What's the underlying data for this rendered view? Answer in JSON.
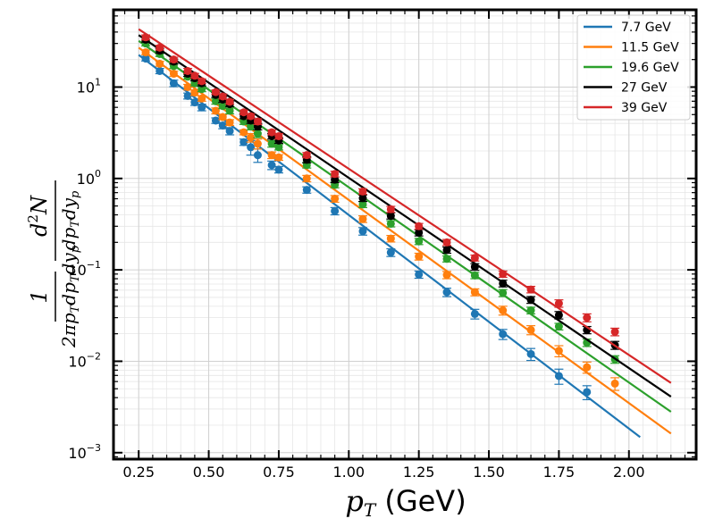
{
  "chart_data": {
    "type": "scatter",
    "title": "",
    "xlabel": "p_T (GeV)",
    "xlabel_parts": {
      "p": "p",
      "sub": "T",
      "rest": " (GeV)"
    },
    "ylabel": "1 / (2π p_T dp_T dy_p) d²N",
    "ylabel_parts": {
      "num_one": "1",
      "den": "2πp",
      "den_sub1": "T",
      "den_mid": "dp",
      "den_sub2": "T",
      "den_end": "dy",
      "den_sub3": "p",
      "num_d": "d",
      "num_sup": "2",
      "num_n": "N"
    },
    "xlim": [
      0.16,
      2.24
    ],
    "ylim": [
      0.00085,
      70
    ],
    "yscale": "log",
    "xticks": [
      "0.25",
      "0.50",
      "0.75",
      "1.00",
      "1.25",
      "1.50",
      "1.75",
      "2.00"
    ],
    "xtick_values": [
      0.25,
      0.5,
      0.75,
      1.0,
      1.25,
      1.5,
      1.75,
      2.0
    ],
    "yticks": [
      {
        "base": "10",
        "exp": "1",
        "value": 10
      },
      {
        "base": "10",
        "exp": "0",
        "value": 1
      },
      {
        "base": "10",
        "exp": "−1",
        "value": 0.1
      },
      {
        "base": "10",
        "exp": "−2",
        "value": 0.01
      },
      {
        "base": "10",
        "exp": "−3",
        "value": 0.001
      }
    ],
    "grid": true,
    "legend_position": "top-right",
    "series": [
      {
        "name": "7.7 GeV",
        "color": "#1f77b4",
        "fit": {
          "x": [
            0.25,
            2.04
          ],
          "y": [
            22.5,
            0.00148
          ]
        },
        "points": [
          [
            0.275,
            20.5,
            1.2
          ],
          [
            0.325,
            15.0,
            1.0
          ],
          [
            0.375,
            11.0,
            0.9
          ],
          [
            0.425,
            8.0,
            0.6
          ],
          [
            0.45,
            6.8,
            0.5
          ],
          [
            0.475,
            6.0,
            0.5
          ],
          [
            0.525,
            4.3,
            0.3
          ],
          [
            0.55,
            3.8,
            0.3
          ],
          [
            0.575,
            3.3,
            0.3
          ],
          [
            0.625,
            2.5,
            0.2
          ],
          [
            0.65,
            2.2,
            0.4
          ],
          [
            0.675,
            1.8,
            0.3
          ],
          [
            0.725,
            1.4,
            0.15
          ],
          [
            0.75,
            1.25,
            0.1
          ],
          [
            0.85,
            0.75,
            0.06
          ],
          [
            0.95,
            0.44,
            0.04
          ],
          [
            1.05,
            0.265,
            0.025
          ],
          [
            1.15,
            0.155,
            0.015
          ],
          [
            1.25,
            0.089,
            0.008
          ],
          [
            1.35,
            0.057,
            0.006
          ],
          [
            1.45,
            0.033,
            0.004
          ],
          [
            1.55,
            0.0198,
            0.0025
          ],
          [
            1.65,
            0.012,
            0.0018
          ],
          [
            1.75,
            0.0069,
            0.0013
          ],
          [
            1.85,
            0.0046,
            0.0008
          ]
        ]
      },
      {
        "name": "11.5 GeV",
        "color": "#ff7f0e",
        "fit": {
          "x": [
            0.25,
            2.15
          ],
          "y": [
            27.0,
            0.00162
          ]
        },
        "points": [
          [
            0.275,
            24.0,
            1.4
          ],
          [
            0.325,
            18.0,
            1.1
          ],
          [
            0.375,
            14.0,
            0.9
          ],
          [
            0.425,
            10.0,
            0.7
          ],
          [
            0.45,
            8.7,
            0.6
          ],
          [
            0.475,
            7.5,
            0.5
          ],
          [
            0.525,
            5.5,
            0.4
          ],
          [
            0.55,
            4.7,
            0.3
          ],
          [
            0.575,
            4.1,
            0.3
          ],
          [
            0.625,
            3.2,
            0.2
          ],
          [
            0.65,
            2.8,
            0.3
          ],
          [
            0.675,
            2.4,
            0.3
          ],
          [
            0.725,
            1.8,
            0.15
          ],
          [
            0.75,
            1.7,
            0.12
          ],
          [
            0.85,
            1.0,
            0.08
          ],
          [
            0.95,
            0.6,
            0.05
          ],
          [
            1.05,
            0.36,
            0.03
          ],
          [
            1.15,
            0.22,
            0.018
          ],
          [
            1.25,
            0.14,
            0.012
          ],
          [
            1.35,
            0.088,
            0.008
          ],
          [
            1.45,
            0.057,
            0.005
          ],
          [
            1.55,
            0.036,
            0.004
          ],
          [
            1.65,
            0.022,
            0.0025
          ],
          [
            1.75,
            0.013,
            0.0018
          ],
          [
            1.85,
            0.0086,
            0.0012
          ],
          [
            1.95,
            0.0057,
            0.0009
          ]
        ]
      },
      {
        "name": "19.6 GeV",
        "color": "#2ca02c",
        "fit": {
          "x": [
            0.25,
            2.15
          ],
          "y": [
            32.0,
            0.0028
          ]
        },
        "points": [
          [
            0.275,
            30.0,
            1.8
          ],
          [
            0.325,
            23.0,
            1.4
          ],
          [
            0.375,
            17.0,
            1.0
          ],
          [
            0.425,
            13.0,
            0.8
          ],
          [
            0.45,
            11.0,
            0.7
          ],
          [
            0.475,
            9.5,
            0.6
          ],
          [
            0.525,
            7.0,
            0.5
          ],
          [
            0.55,
            6.2,
            0.4
          ],
          [
            0.575,
            5.5,
            0.4
          ],
          [
            0.625,
            4.2,
            0.3
          ],
          [
            0.65,
            3.7,
            0.3
          ],
          [
            0.675,
            3.1,
            0.3
          ],
          [
            0.725,
            2.4,
            0.2
          ],
          [
            0.75,
            2.2,
            0.15
          ],
          [
            0.85,
            1.4,
            0.1
          ],
          [
            0.95,
            0.85,
            0.06
          ],
          [
            1.05,
            0.52,
            0.04
          ],
          [
            1.15,
            0.32,
            0.025
          ],
          [
            1.25,
            0.205,
            0.016
          ],
          [
            1.35,
            0.132,
            0.01
          ],
          [
            1.45,
            0.087,
            0.007
          ],
          [
            1.55,
            0.056,
            0.005
          ],
          [
            1.65,
            0.036,
            0.003
          ],
          [
            1.75,
            0.024,
            0.002
          ],
          [
            1.85,
            0.016,
            0.0015
          ],
          [
            1.95,
            0.0105,
            0.001
          ]
        ]
      },
      {
        "name": "27 GeV",
        "color": "#000000",
        "fit": {
          "x": [
            0.25,
            2.15
          ],
          "y": [
            37.0,
            0.0041
          ]
        },
        "points": [
          [
            0.275,
            33.0,
            2.0
          ],
          [
            0.325,
            25.0,
            1.5
          ],
          [
            0.375,
            19.0,
            1.2
          ],
          [
            0.425,
            14.0,
            0.9
          ],
          [
            0.45,
            12.5,
            0.8
          ],
          [
            0.475,
            11.0,
            0.7
          ],
          [
            0.525,
            8.2,
            0.5
          ],
          [
            0.55,
            7.3,
            0.5
          ],
          [
            0.575,
            6.5,
            0.4
          ],
          [
            0.625,
            4.8,
            0.3
          ],
          [
            0.65,
            4.3,
            0.3
          ],
          [
            0.675,
            3.7,
            0.3
          ],
          [
            0.725,
            2.9,
            0.2
          ],
          [
            0.75,
            2.6,
            0.18
          ],
          [
            0.85,
            1.6,
            0.12
          ],
          [
            0.95,
            0.97,
            0.07
          ],
          [
            1.05,
            0.61,
            0.05
          ],
          [
            1.15,
            0.39,
            0.03
          ],
          [
            1.25,
            0.255,
            0.02
          ],
          [
            1.35,
            0.165,
            0.013
          ],
          [
            1.45,
            0.108,
            0.009
          ],
          [
            1.55,
            0.071,
            0.006
          ],
          [
            1.65,
            0.047,
            0.004
          ],
          [
            1.75,
            0.032,
            0.003
          ],
          [
            1.85,
            0.022,
            0.002
          ],
          [
            1.95,
            0.015,
            0.0015
          ]
        ]
      },
      {
        "name": "39 GeV",
        "color": "#d62728",
        "fit": {
          "x": [
            0.25,
            2.15
          ],
          "y": [
            43.0,
            0.0058
          ]
        },
        "points": [
          [
            0.275,
            35.0,
            2.2
          ],
          [
            0.325,
            27.0,
            1.6
          ],
          [
            0.375,
            20.0,
            1.2
          ],
          [
            0.425,
            15.0,
            1.0
          ],
          [
            0.45,
            13.3,
            0.8
          ],
          [
            0.475,
            11.6,
            0.7
          ],
          [
            0.525,
            8.8,
            0.5
          ],
          [
            0.55,
            7.9,
            0.5
          ],
          [
            0.575,
            6.9,
            0.4
          ],
          [
            0.625,
            5.3,
            0.3
          ],
          [
            0.65,
            4.8,
            0.3
          ],
          [
            0.675,
            4.2,
            0.3
          ],
          [
            0.725,
            3.2,
            0.2
          ],
          [
            0.75,
            2.9,
            0.2
          ],
          [
            0.85,
            1.8,
            0.12
          ],
          [
            0.95,
            1.12,
            0.08
          ],
          [
            1.05,
            0.72,
            0.05
          ],
          [
            1.15,
            0.46,
            0.035
          ],
          [
            1.25,
            0.3,
            0.022
          ],
          [
            1.35,
            0.2,
            0.015
          ],
          [
            1.45,
            0.135,
            0.01
          ],
          [
            1.55,
            0.09,
            0.007
          ],
          [
            1.65,
            0.061,
            0.005
          ],
          [
            1.75,
            0.043,
            0.004
          ],
          [
            1.85,
            0.03,
            0.003
          ],
          [
            1.95,
            0.021,
            0.002
          ]
        ]
      }
    ]
  }
}
